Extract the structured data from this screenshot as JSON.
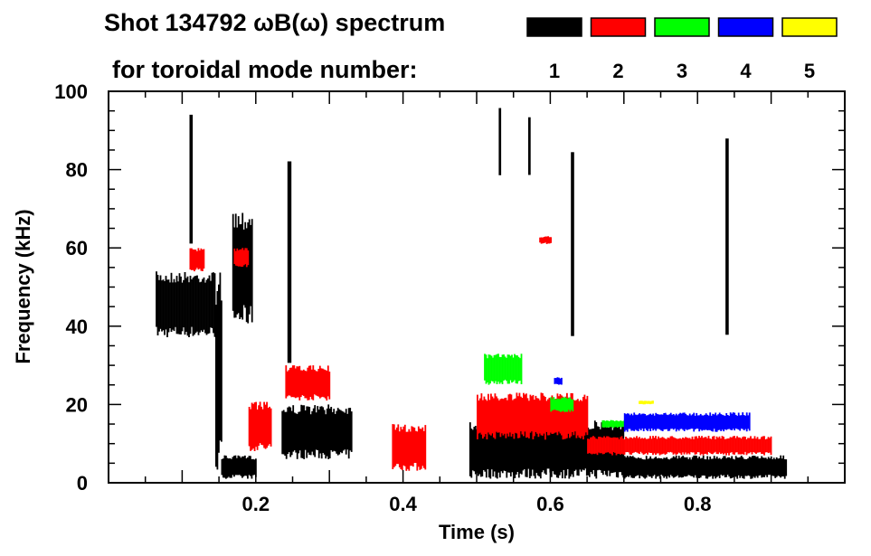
{
  "chart_data": {
    "type": "heatmap",
    "title": "Shot 134792 ωB(ω) spectrum",
    "subtitle": "for toroidal mode number:",
    "xlabel": "Time (s)",
    "ylabel": "Frequency (kHz)",
    "xlim": [
      0,
      1.0
    ],
    "ylim": [
      0,
      100
    ],
    "xticks": [
      {
        "v": 0.2,
        "label": "0.2"
      },
      {
        "v": 0.4,
        "label": "0.4"
      },
      {
        "v": 0.6,
        "label": "0.6"
      },
      {
        "v": 0.8,
        "label": "0.8"
      }
    ],
    "yticks": [
      {
        "v": 0,
        "label": "0"
      },
      {
        "v": 20,
        "label": "20"
      },
      {
        "v": 40,
        "label": "40"
      },
      {
        "v": 60,
        "label": "60"
      },
      {
        "v": 80,
        "label": "80"
      },
      {
        "v": 100,
        "label": "100"
      }
    ],
    "legend": [
      {
        "mode": "1",
        "color": "#000000"
      },
      {
        "mode": "2",
        "color": "#ff0000"
      },
      {
        "mode": "3",
        "color": "#00ff00"
      },
      {
        "mode": "4",
        "color": "#0000ff"
      },
      {
        "mode": "5",
        "color": "#ffff00"
      }
    ],
    "features": [
      {
        "mode": "1",
        "t": [
          0.064,
          0.145
        ],
        "f": [
          37,
          54
        ]
      },
      {
        "mode": "1",
        "t": [
          0.145,
          0.153
        ],
        "f": [
          2,
          55
        ]
      },
      {
        "mode": "1",
        "t": [
          0.153,
          0.2
        ],
        "f": [
          1,
          7
        ]
      },
      {
        "mode": "1",
        "t": [
          0.168,
          0.195
        ],
        "f": [
          40,
          70
        ]
      },
      {
        "mode": "1",
        "t": [
          0.11,
          0.114
        ],
        "f": [
          60,
          97
        ]
      },
      {
        "mode": "1",
        "t": [
          0.235,
          0.33
        ],
        "f": [
          6,
          20
        ]
      },
      {
        "mode": "1",
        "t": [
          0.243,
          0.248
        ],
        "f": [
          20,
          95
        ]
      },
      {
        "mode": "1",
        "t": [
          0.49,
          0.7
        ],
        "f": [
          1,
          16
        ]
      },
      {
        "mode": "1",
        "t": [
          0.7,
          0.92
        ],
        "f": [
          1,
          7
        ]
      },
      {
        "mode": "1",
        "t": [
          0.53,
          0.533
        ],
        "f": [
          75,
          98
        ]
      },
      {
        "mode": "1",
        "t": [
          0.57,
          0.573
        ],
        "f": [
          75,
          97
        ]
      },
      {
        "mode": "1",
        "t": [
          0.628,
          0.632
        ],
        "f": [
          30,
          85
        ]
      },
      {
        "mode": "1",
        "t": [
          0.838,
          0.842
        ],
        "f": [
          30,
          92
        ]
      },
      {
        "mode": "2",
        "t": [
          0.11,
          0.13
        ],
        "f": [
          54,
          60
        ]
      },
      {
        "mode": "2",
        "t": [
          0.17,
          0.19
        ],
        "f": [
          55,
          60
        ]
      },
      {
        "mode": "2",
        "t": [
          0.19,
          0.22
        ],
        "f": [
          8,
          21
        ]
      },
      {
        "mode": "2",
        "t": [
          0.24,
          0.3
        ],
        "f": [
          21,
          30
        ]
      },
      {
        "mode": "2",
        "t": [
          0.385,
          0.43
        ],
        "f": [
          3,
          15
        ]
      },
      {
        "mode": "2",
        "t": [
          0.5,
          0.65
        ],
        "f": [
          11,
          23
        ]
      },
      {
        "mode": "2",
        "t": [
          0.65,
          0.9
        ],
        "f": [
          7,
          12
        ]
      },
      {
        "mode": "2",
        "t": [
          0.585,
          0.6
        ],
        "f": [
          61,
          63
        ]
      },
      {
        "mode": "3",
        "t": [
          0.51,
          0.56
        ],
        "f": [
          25,
          33
        ]
      },
      {
        "mode": "3",
        "t": [
          0.6,
          0.63
        ],
        "f": [
          18,
          22
        ]
      },
      {
        "mode": "3",
        "t": [
          0.67,
          0.72
        ],
        "f": [
          14,
          16
        ]
      },
      {
        "mode": "4",
        "t": [
          0.7,
          0.87
        ],
        "f": [
          13,
          18
        ]
      },
      {
        "mode": "4",
        "t": [
          0.605,
          0.615
        ],
        "f": [
          25,
          27
        ]
      },
      {
        "mode": "5",
        "t": [
          0.72,
          0.74
        ],
        "f": [
          20,
          21
        ]
      }
    ]
  }
}
